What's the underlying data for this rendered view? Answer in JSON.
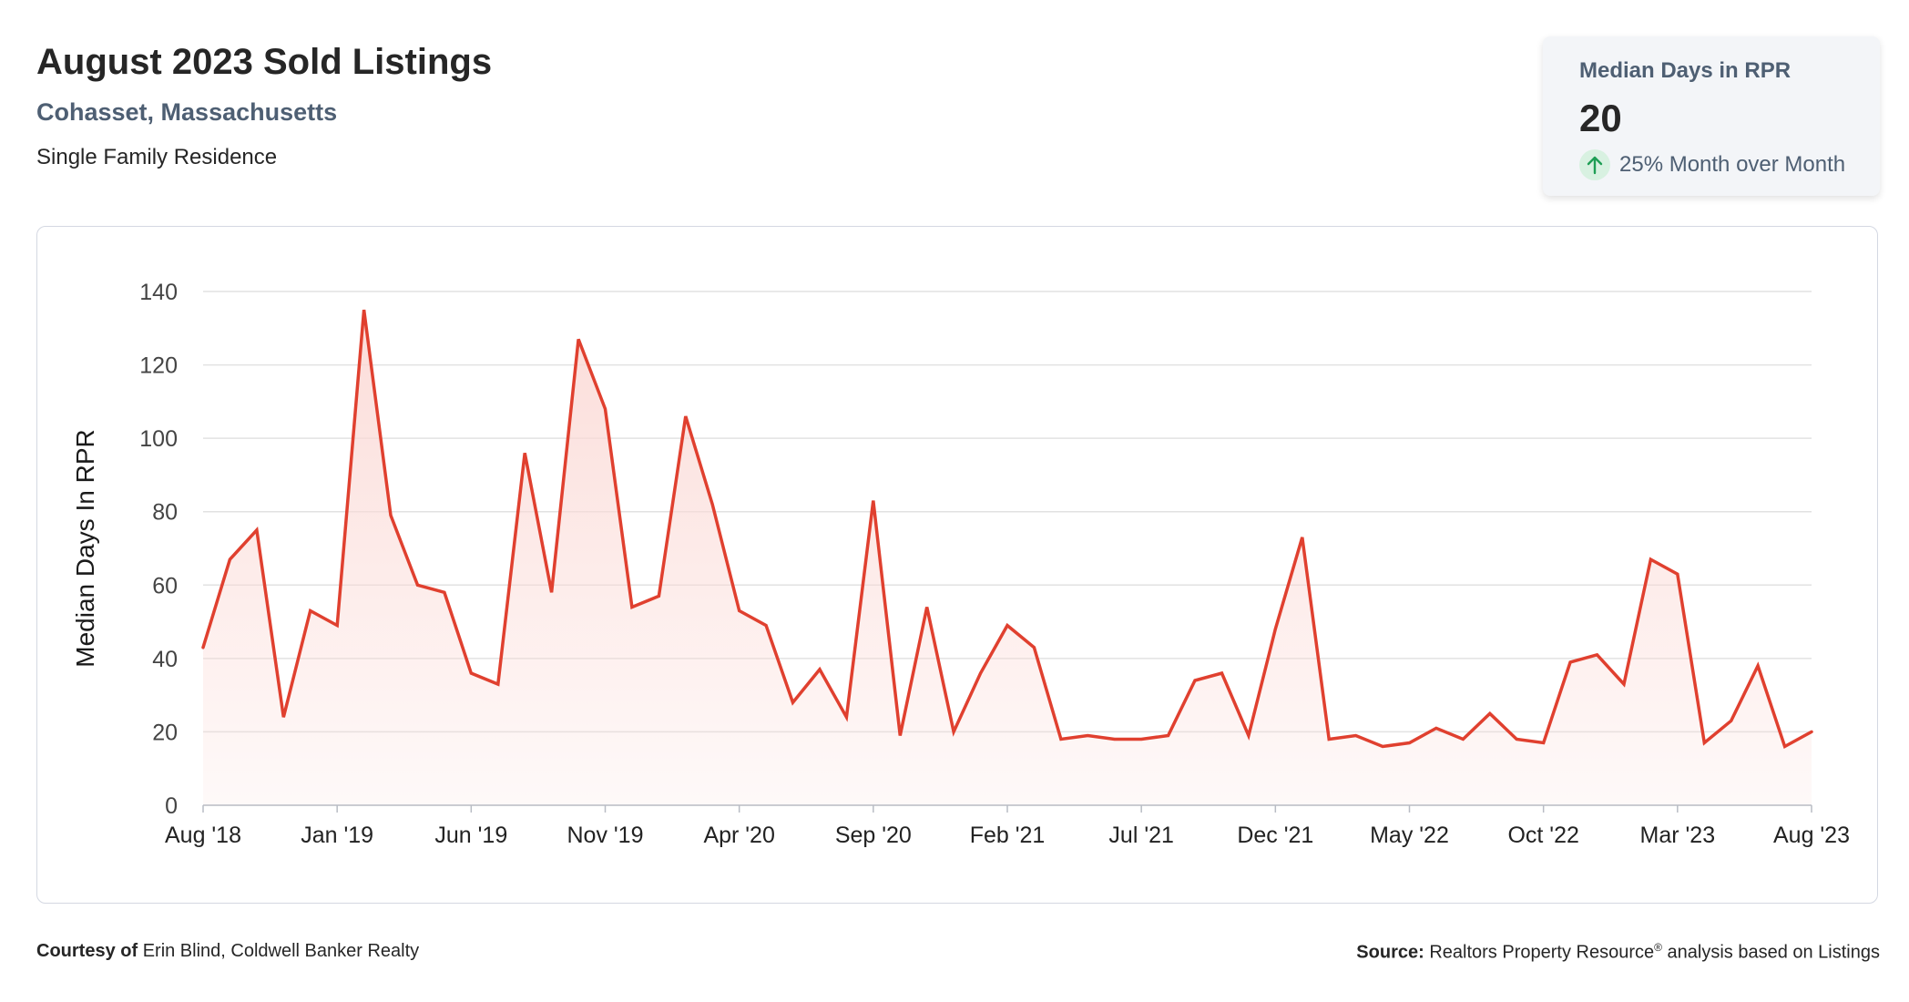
{
  "header": {
    "title": "August 2023 Sold Listings",
    "location": "Cohasset, Massachusetts",
    "property_type": "Single Family Residence"
  },
  "kpi": {
    "label": "Median Days in RPR",
    "value": "20",
    "change": "25% Month over Month",
    "direction": "up",
    "direction_icon": "arrow-up-icon",
    "accent_color": "#1e9e55"
  },
  "footer": {
    "courtesy_label": "Courtesy of",
    "courtesy_text": "Erin Blind, Coldwell Banker Realty",
    "source_label": "Source:",
    "source_text_a": "Realtors Property Resource",
    "source_mark": "®",
    "source_text_b": " analysis based on Listings"
  },
  "chart_data": {
    "type": "area",
    "title": "",
    "xlabel": "",
    "ylabel": "Median Days In RPR",
    "ylim": [
      0,
      140
    ],
    "yticks": [
      0,
      20,
      40,
      60,
      80,
      100,
      120,
      140
    ],
    "grid": true,
    "line_color": "#e0402f",
    "fill_color": "#fbd9d5",
    "x_tick_labels": [
      "Aug '18",
      "Jan '19",
      "Jun '19",
      "Nov '19",
      "Apr '20",
      "Sep '20",
      "Feb '21",
      "Jul '21",
      "Dec '21",
      "May '22",
      "Oct '22",
      "Mar '23",
      "Aug '23"
    ],
    "x_tick_interval_months": 5,
    "series": [
      {
        "values": [
          43,
          67,
          75,
          24,
          53,
          49,
          135,
          79,
          60,
          58,
          36,
          33,
          96,
          58,
          127,
          108,
          54,
          57,
          106,
          82,
          53,
          49,
          28,
          37,
          24,
          83,
          19,
          54,
          20,
          36,
          49,
          43,
          18,
          19,
          18,
          18,
          19,
          34,
          36,
          19,
          48,
          73,
          18,
          19,
          16,
          17,
          21,
          18,
          25,
          18,
          17,
          39,
          41,
          33,
          67,
          63,
          17,
          23,
          38,
          16,
          20
        ]
      }
    ]
  }
}
